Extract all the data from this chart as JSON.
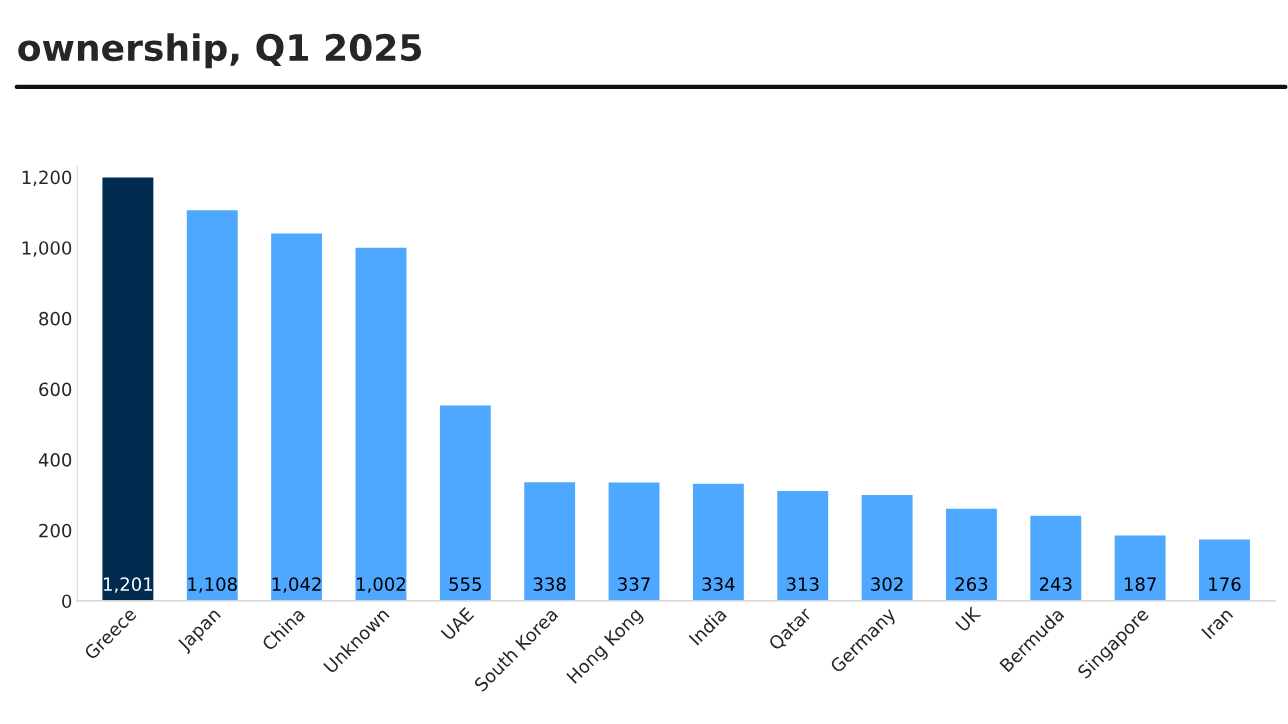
{
  "chart_data": {
    "type": "bar",
    "title": "ownership, Q1 2025",
    "categories": [
      "Greece",
      "Japan",
      "China",
      "Unknown",
      "UAE",
      "South Korea",
      "Hong Kong",
      "India",
      "Qatar",
      "Germany",
      "UK",
      "Bermuda",
      "Singapore",
      "Iran"
    ],
    "values": [
      1201,
      1108,
      1042,
      1002,
      555,
      338,
      337,
      334,
      313,
      302,
      263,
      243,
      187,
      176
    ],
    "colors": [
      "#002b4f",
      "#4fa8ff",
      "#4fa8ff",
      "#4fa8ff",
      "#4fa8ff",
      "#4fa8ff",
      "#4fa8ff",
      "#4fa8ff",
      "#4fa8ff",
      "#4fa8ff",
      "#4fa8ff",
      "#4fa8ff",
      "#4fa8ff",
      "#4fa8ff"
    ],
    "ylim": [
      0,
      1230
    ],
    "yticks": [
      {
        "value": 0,
        "label": "0"
      },
      {
        "value": 200,
        "label": "200"
      },
      {
        "value": 400,
        "label": "400"
      },
      {
        "value": 600,
        "label": "600"
      },
      {
        "value": 800,
        "label": "800"
      },
      {
        "value": 1000,
        "label": "1,000"
      },
      {
        "value": 1200,
        "label": "1,200"
      }
    ],
    "value_labels": [
      "1,201",
      "1,108",
      "1,042",
      "1,002",
      "555",
      "338",
      "337",
      "334",
      "313",
      "302",
      "263",
      "243",
      "187",
      "176"
    ],
    "grid": false
  }
}
